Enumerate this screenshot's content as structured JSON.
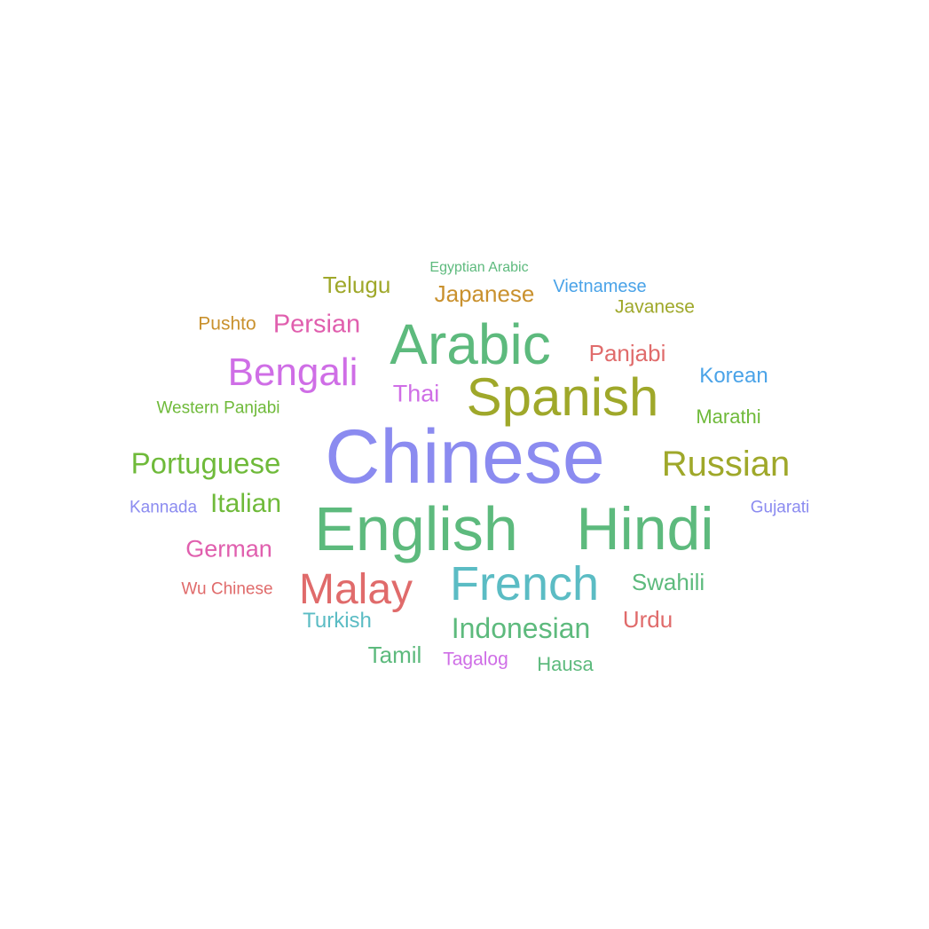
{
  "cloud": {
    "words": [
      {
        "text": "Chinese",
        "color": "#8b8bf0",
        "weight": 100
      },
      {
        "text": "English",
        "color": "#5dba7d",
        "weight": 88
      },
      {
        "text": "Hindi",
        "color": "#5dba7d",
        "weight": 82
      },
      {
        "text": "Arabic",
        "color": "#5dba7d",
        "weight": 78
      },
      {
        "text": "Spanish",
        "color": "#9fa82a",
        "weight": 74
      },
      {
        "text": "French",
        "color": "#5bbcc4",
        "weight": 70
      },
      {
        "text": "Malay",
        "color": "#e06b6b",
        "weight": 62
      },
      {
        "text": "Bengali",
        "color": "#cf6ee6",
        "weight": 58
      },
      {
        "text": "Russian",
        "color": "#9fa82a",
        "weight": 55
      },
      {
        "text": "Portuguese",
        "color": "#6fba3a",
        "weight": 50
      },
      {
        "text": "Indonesian",
        "color": "#5dba7d",
        "weight": 46
      },
      {
        "text": "Italian",
        "color": "#6fba3a",
        "weight": 44
      },
      {
        "text": "Persian",
        "color": "#e05fae",
        "weight": 42
      },
      {
        "text": "German",
        "color": "#e05fae",
        "weight": 41
      },
      {
        "text": "Japanese",
        "color": "#c9912e",
        "weight": 40
      },
      {
        "text": "Panjabi",
        "color": "#e06b6b",
        "weight": 40
      },
      {
        "text": "Swahili",
        "color": "#5dba7d",
        "weight": 40
      },
      {
        "text": "Telugu",
        "color": "#9fa82a",
        "weight": 40
      },
      {
        "text": "Thai",
        "color": "#cf6ee6",
        "weight": 40
      },
      {
        "text": "Urdu",
        "color": "#e06b6b",
        "weight": 40
      },
      {
        "text": "Tamil",
        "color": "#5dba7d",
        "weight": 40
      },
      {
        "text": "Korean",
        "color": "#4aa3e8",
        "weight": 38
      },
      {
        "text": "Marathi",
        "color": "#6fba3a",
        "weight": 36
      },
      {
        "text": "Turkish",
        "color": "#5bbcc4",
        "weight": 36
      },
      {
        "text": "Javanese",
        "color": "#9fa82a",
        "weight": 34
      },
      {
        "text": "Hausa",
        "color": "#5dba7d",
        "weight": 34
      },
      {
        "text": "Tagalog",
        "color": "#cf6ee6",
        "weight": 34
      },
      {
        "text": "Pushto",
        "color": "#c9912e",
        "weight": 34
      },
      {
        "text": "Vietnamese",
        "color": "#4aa3e8",
        "weight": 32
      },
      {
        "text": "Western Panjabi",
        "color": "#6fba3a",
        "weight": 30
      },
      {
        "text": "Wu Chinese",
        "color": "#e06b6b",
        "weight": 30
      },
      {
        "text": "Kannada",
        "color": "#8b8bf0",
        "weight": 30
      },
      {
        "text": "Gujarati",
        "color": "#8b8bf0",
        "weight": 30
      },
      {
        "text": "Egyptian Arabic",
        "color": "#5dba7d",
        "weight": 26
      }
    ]
  }
}
